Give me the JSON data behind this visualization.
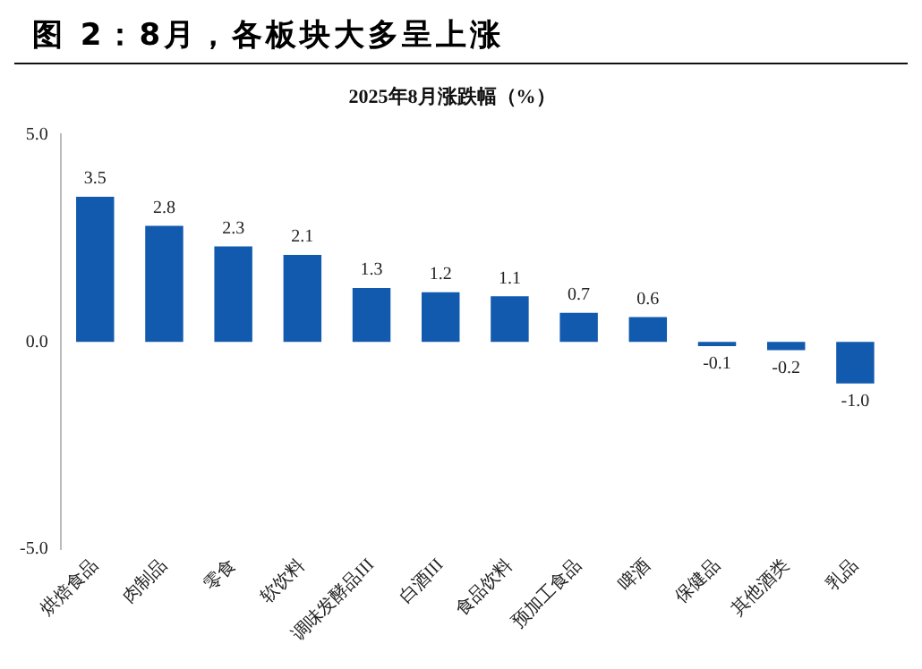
{
  "chart_data": {
    "type": "bar",
    "title": "图 2：8月，各板块大多呈上涨",
    "subtitle": "2025年8月涨跌幅（%）",
    "categories": [
      "烘焙食品",
      "肉制品",
      "零食",
      "软饮料",
      "调味发酵品III",
      "白酒III",
      "食品饮料",
      "预加工食品",
      "啤酒",
      "保健品",
      "其他酒类",
      "乳品"
    ],
    "values": [
      3.5,
      2.8,
      2.3,
      2.1,
      1.3,
      1.2,
      1.1,
      0.7,
      0.6,
      -0.1,
      -0.2,
      -1.0
    ],
    "value_labels": [
      "3.5",
      "2.8",
      "2.3",
      "2.1",
      "1.3",
      "1.2",
      "1.1",
      "0.7",
      "0.6",
      "-0.1",
      "-0.2",
      "-1.0"
    ],
    "color": "#125aad",
    "ylim": [
      -5,
      5
    ],
    "yticks": [
      {
        "value": -5,
        "label": "-5.0"
      },
      {
        "value": 0,
        "label": "0.0"
      },
      {
        "value": 5,
        "label": "5.0"
      }
    ],
    "grid": false,
    "legend": false
  }
}
